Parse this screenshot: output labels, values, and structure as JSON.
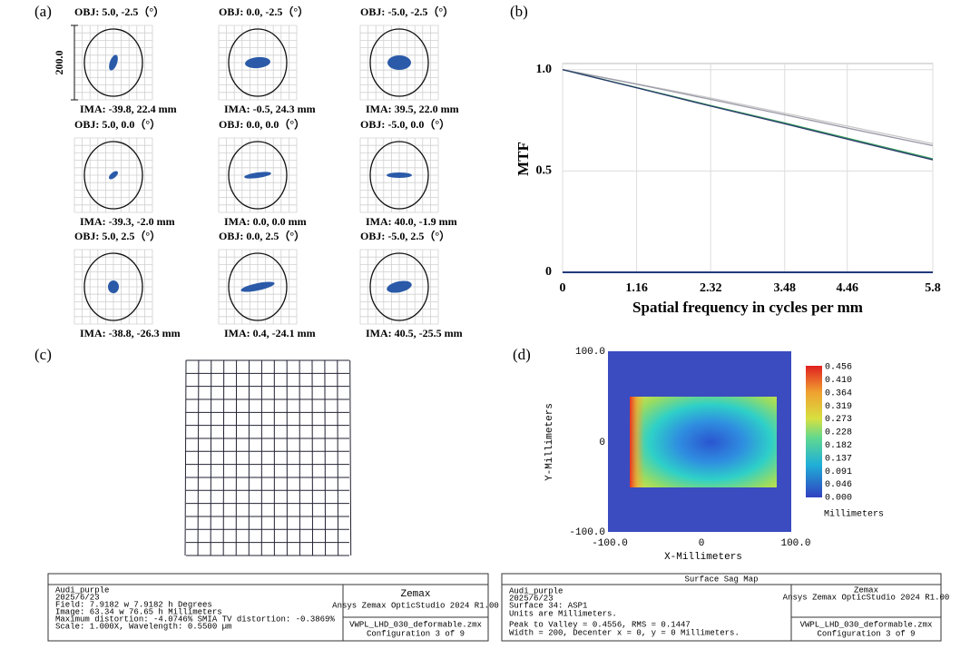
{
  "panels": {
    "a": {
      "label": "(a)",
      "scale_label": "200.0",
      "spots": [
        {
          "obj": "OBJ: 5.0, -2.5（°）",
          "ima": "IMA: -39.8, 22.4 mm"
        },
        {
          "obj": "OBJ: 0.0, -2.5（°）",
          "ima": "IMA: -0.5, 24.3 mm"
        },
        {
          "obj": "OBJ: -5.0, -2.5（°）",
          "ima": "IMA: 39.5, 22.0 mm"
        },
        {
          "obj": "OBJ: 5.0, 0.0（°）",
          "ima": "IMA: -39.3, -2.0 mm"
        },
        {
          "obj": "OBJ: 0.0, 0.0（°）",
          "ima": "IMA: 0.0, 0.0 mm"
        },
        {
          "obj": "OBJ: -5.0, 0.0（°）",
          "ima": "IMA: 40.0, -1.9 mm"
        },
        {
          "obj": "OBJ: 5.0, 2.5（°）",
          "ima": "IMA: -38.8, -26.3 mm"
        },
        {
          "obj": "OBJ: 0.0, 2.5（°）",
          "ima": "IMA: 0.4, -24.1 mm"
        },
        {
          "obj": "OBJ: -5.0, 2.5（°）",
          "ima": "IMA: 40.5, -25.5 mm"
        }
      ]
    },
    "b": {
      "label": "(b)"
    },
    "c": {
      "label": "(c)",
      "footer": {
        "lines": [
          "Audi_purple",
          "2025/6/23",
          "Field: 7.9182 w 7.9182 h Degrees",
          "Image: 63.34 w 76.65 h Millimeters",
          "Maximum distortion: -4.0746%  SMIA TV distortion: -0.3869%",
          "Scale: 1.000X, Wavelength: 0.5500 µm"
        ],
        "brand": "Zemax",
        "product": "Ansys Zemax OpticStudio 2024 R1.00",
        "file": "VWPL_LHD_030_deformable.zmx",
        "config": "Configuration 3 of 9"
      }
    },
    "d": {
      "label": "(d)",
      "ylabel": "Y-Millimeters",
      "xlabel": "X-Millimeters",
      "yticks": [
        "100.0",
        "0",
        "-100.0"
      ],
      "xticks": [
        "-100.0",
        "0",
        "100.0"
      ],
      "colorbar_labels": [
        "0.456",
        "0.410",
        "0.364",
        "0.319",
        "0.273",
        "0.228",
        "0.182",
        "0.137",
        "0.091",
        "0.046",
        "0.000"
      ],
      "colorbar_unit": "Millimeters",
      "footer": {
        "title": "Surface Sag Map",
        "lines": [
          "Audi_purple",
          "2025/6/23",
          "Surface 34: ASP1",
          "Units are Millimeters.",
          "Peak to Valley = 0.4556, RMS = 0.1447",
          "Width = 200, Decenter x = 0, y = 0 Millimeters."
        ],
        "brand": "Zemax",
        "product": "Ansys Zemax OpticStudio 2024 R1.00",
        "file": "VWPL_LHD_030_deformable.zmx",
        "config": "Configuration 3 of 9"
      }
    }
  },
  "chart_data": {
    "type": "line",
    "ylabel": "MTF",
    "xlabel": "Spatial frequency in cycles per mm",
    "x": [
      0,
      1.16,
      2.32,
      3.48,
      4.64,
      5.8
    ],
    "series": [
      {
        "color": "#c8c8c8",
        "values": [
          1.0,
          0.93,
          0.86,
          0.785,
          0.71,
          0.635
        ]
      },
      {
        "color": "#9a9aa8",
        "values": [
          1.0,
          0.928,
          0.853,
          0.777,
          0.7,
          0.625
        ]
      },
      {
        "color": "#3aa060",
        "values": [
          1.0,
          0.912,
          0.823,
          0.737,
          0.648,
          0.56
        ]
      },
      {
        "color": "#2b3a6b",
        "values": [
          1.0,
          0.91,
          0.82,
          0.733,
          0.643,
          0.555
        ]
      }
    ],
    "xlim": [
      0,
      5.8
    ],
    "ylim": [
      0,
      1.03
    ],
    "xticks": [
      0,
      1.16,
      2.32,
      3.48,
      4.46,
      5.8
    ],
    "yticks": [
      0,
      0.5,
      {
        "value": 1,
        "label": "1.0"
      }
    ],
    "grid": true
  }
}
